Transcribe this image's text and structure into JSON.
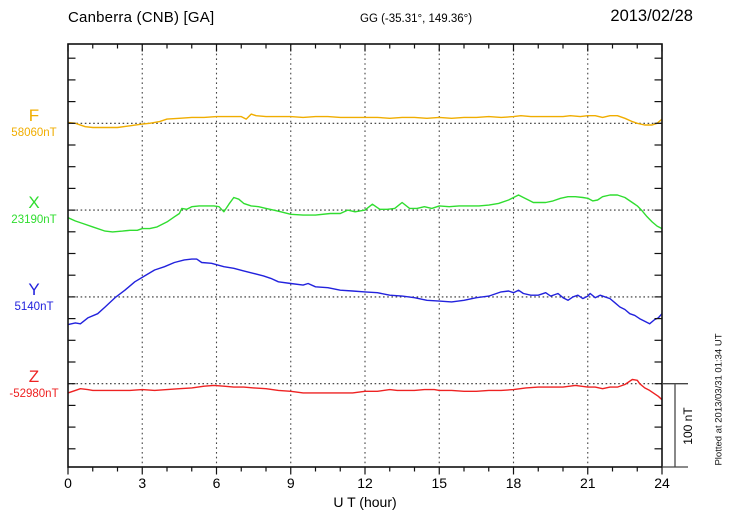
{
  "header": {
    "station_title": "Canberra (CNB)  [GA]",
    "coords": "GG (-35.31°, 149.36°)",
    "date": "2013/02/28"
  },
  "axes": {
    "x_label": "U T (hour)",
    "x_tick_labels": [
      "0",
      "3",
      "6",
      "9",
      "12",
      "15",
      "18",
      "21",
      "24"
    ],
    "x_range_hours": [
      0,
      24
    ]
  },
  "scale_bar": {
    "label": "100 nT",
    "span_nT": 100
  },
  "footer_note": "Plotted at 2013/03/31 01:34 UT",
  "channels": [
    {
      "id": "F",
      "label": "F",
      "value_label": "58060nT",
      "color": "#f0ad00"
    },
    {
      "id": "X",
      "label": "X",
      "value_label": "23190nT",
      "color": "#30dd30"
    },
    {
      "id": "Y",
      "label": "Y",
      "value_label": "5140nT",
      "color": "#2222dd"
    },
    {
      "id": "Z",
      "label": "Z",
      "value_label": "-52980nT",
      "color": "#ee2222"
    }
  ],
  "chart_data": {
    "type": "line",
    "title": "Canberra (CNB) magnetogram 2013/02/28",
    "xlabel": "U T (hour)",
    "x_range": [
      0,
      24
    ],
    "grid": "dotted vertical every 3 h, dotted horizontal baseline per channel",
    "vertical_scale": "100 nT per baseline interval",
    "series": [
      {
        "name": "F",
        "baseline_nT": 58060,
        "color": "#f0ad00",
        "points": [
          [
            0,
            58061
          ],
          [
            0.3,
            58060
          ],
          [
            0.7,
            58056
          ],
          [
            1,
            58055
          ],
          [
            1.5,
            58055
          ],
          [
            2,
            58055
          ],
          [
            2.5,
            58057
          ],
          [
            3,
            58059
          ],
          [
            3.3,
            58060
          ],
          [
            3.7,
            58062
          ],
          [
            4,
            58065
          ],
          [
            4.5,
            58066
          ],
          [
            5,
            58067
          ],
          [
            5.5,
            58067
          ],
          [
            6,
            58068
          ],
          [
            6.5,
            58068
          ],
          [
            7,
            58068
          ],
          [
            7.2,
            58065
          ],
          [
            7.4,
            58071
          ],
          [
            7.6,
            58069
          ],
          [
            8,
            58068
          ],
          [
            8.5,
            58068
          ],
          [
            9,
            58068
          ],
          [
            9.5,
            58067
          ],
          [
            10,
            58068
          ],
          [
            10.5,
            58068
          ],
          [
            11,
            58067
          ],
          [
            11.5,
            58067
          ],
          [
            12,
            58067
          ],
          [
            12.5,
            58067
          ],
          [
            13,
            58066
          ],
          [
            13.5,
            58067
          ],
          [
            14,
            58067
          ],
          [
            14.5,
            58066
          ],
          [
            15,
            58067
          ],
          [
            15.5,
            58066
          ],
          [
            16,
            58067
          ],
          [
            16.5,
            58067
          ],
          [
            17,
            58068
          ],
          [
            17.5,
            58067
          ],
          [
            18,
            58068
          ],
          [
            18.3,
            58069
          ],
          [
            18.7,
            58068
          ],
          [
            19,
            58068
          ],
          [
            19.5,
            58068
          ],
          [
            20,
            58068
          ],
          [
            20.3,
            58069
          ],
          [
            20.7,
            58068
          ],
          [
            21,
            58069
          ],
          [
            21.3,
            58069
          ],
          [
            21.6,
            58067
          ],
          [
            21.9,
            58069
          ],
          [
            22.2,
            58069
          ],
          [
            22.5,
            58066
          ],
          [
            22.8,
            58062
          ],
          [
            23,
            58060
          ],
          [
            23.3,
            58058
          ],
          [
            23.6,
            58058
          ],
          [
            23.8,
            58060
          ],
          [
            24,
            58065
          ]
        ]
      },
      {
        "name": "X",
        "baseline_nT": 23190,
        "color": "#30dd30",
        "points": [
          [
            0,
            23181
          ],
          [
            0.3,
            23177
          ],
          [
            0.6,
            23174
          ],
          [
            1,
            23170
          ],
          [
            1.5,
            23165
          ],
          [
            1.8,
            23164
          ],
          [
            2.2,
            23165
          ],
          [
            2.5,
            23166
          ],
          [
            2.8,
            23166
          ],
          [
            3,
            23168
          ],
          [
            3.3,
            23168
          ],
          [
            3.6,
            23170
          ],
          [
            4,
            23176
          ],
          [
            4.3,
            23182
          ],
          [
            4.5,
            23186
          ],
          [
            4.6,
            23192
          ],
          [
            4.8,
            23191
          ],
          [
            5,
            23194
          ],
          [
            5.3,
            23195
          ],
          [
            5.6,
            23195
          ],
          [
            5.9,
            23195
          ],
          [
            6.1,
            23194
          ],
          [
            6.3,
            23188
          ],
          [
            6.5,
            23197
          ],
          [
            6.7,
            23205
          ],
          [
            6.9,
            23203
          ],
          [
            7.1,
            23198
          ],
          [
            7.4,
            23195
          ],
          [
            7.7,
            23194
          ],
          [
            8,
            23192
          ],
          [
            8.3,
            23190
          ],
          [
            8.6,
            23188
          ],
          [
            9,
            23185
          ],
          [
            9.5,
            23184
          ],
          [
            10,
            23184
          ],
          [
            10.6,
            23186
          ],
          [
            11,
            23186
          ],
          [
            11.3,
            23190
          ],
          [
            11.6,
            23188
          ],
          [
            12,
            23190
          ],
          [
            12.3,
            23197
          ],
          [
            12.6,
            23191
          ],
          [
            12.9,
            23191
          ],
          [
            13.2,
            23192
          ],
          [
            13.5,
            23199
          ],
          [
            13.8,
            23192
          ],
          [
            14.1,
            23192
          ],
          [
            14.4,
            23194
          ],
          [
            14.7,
            23192
          ],
          [
            15,
            23195
          ],
          [
            15.4,
            23194
          ],
          [
            15.8,
            23195
          ],
          [
            16.2,
            23195
          ],
          [
            16.6,
            23195
          ],
          [
            17,
            23196
          ],
          [
            17.4,
            23198
          ],
          [
            17.8,
            23202
          ],
          [
            18.2,
            23208
          ],
          [
            18.4,
            23205
          ],
          [
            18.6,
            23202
          ],
          [
            18.8,
            23199
          ],
          [
            19,
            23199
          ],
          [
            19.3,
            23199
          ],
          [
            19.6,
            23201
          ],
          [
            19.9,
            23204
          ],
          [
            20.2,
            23206
          ],
          [
            20.5,
            23206
          ],
          [
            20.8,
            23205
          ],
          [
            21,
            23204
          ],
          [
            21.2,
            23201
          ],
          [
            21.4,
            23202
          ],
          [
            21.6,
            23206
          ],
          [
            21.9,
            23208
          ],
          [
            22.2,
            23208
          ],
          [
            22.5,
            23205
          ],
          [
            22.8,
            23199
          ],
          [
            23,
            23195
          ],
          [
            23.2,
            23189
          ],
          [
            23.4,
            23182
          ],
          [
            23.6,
            23176
          ],
          [
            23.8,
            23171
          ],
          [
            24,
            23168
          ]
        ]
      },
      {
        "name": "Y",
        "baseline_nT": 5140,
        "color": "#2222dd",
        "points": [
          [
            0,
            5107
          ],
          [
            0.3,
            5109
          ],
          [
            0.5,
            5108
          ],
          [
            0.8,
            5115
          ],
          [
            1.2,
            5120
          ],
          [
            1.5,
            5128
          ],
          [
            1.9,
            5139
          ],
          [
            2.3,
            5148
          ],
          [
            2.7,
            5158
          ],
          [
            3.1,
            5165
          ],
          [
            3.5,
            5172
          ],
          [
            3.9,
            5176
          ],
          [
            4.3,
            5181
          ],
          [
            4.7,
            5184
          ],
          [
            5,
            5185
          ],
          [
            5.2,
            5185
          ],
          [
            5.4,
            5181
          ],
          [
            5.8,
            5180
          ],
          [
            6.3,
            5176
          ],
          [
            6.7,
            5174
          ],
          [
            7.1,
            5171
          ],
          [
            7.5,
            5168
          ],
          [
            7.9,
            5165
          ],
          [
            8.2,
            5162
          ],
          [
            8.5,
            5158
          ],
          [
            9,
            5156
          ],
          [
            9.5,
            5154
          ],
          [
            9.7,
            5156
          ],
          [
            10,
            5152
          ],
          [
            10.5,
            5151
          ],
          [
            11,
            5148
          ],
          [
            11.5,
            5147
          ],
          [
            12,
            5146
          ],
          [
            12.5,
            5145
          ],
          [
            13,
            5142
          ],
          [
            13.5,
            5141
          ],
          [
            14,
            5139
          ],
          [
            14.5,
            5136
          ],
          [
            15,
            5135
          ],
          [
            15.5,
            5134
          ],
          [
            16,
            5136
          ],
          [
            16.5,
            5139
          ],
          [
            17,
            5141
          ],
          [
            17.5,
            5146
          ],
          [
            17.8,
            5147
          ],
          [
            18,
            5145
          ],
          [
            18.2,
            5148
          ],
          [
            18.4,
            5144
          ],
          [
            18.7,
            5142
          ],
          [
            19,
            5142
          ],
          [
            19.3,
            5145
          ],
          [
            19.5,
            5141
          ],
          [
            19.8,
            5144
          ],
          [
            20,
            5139
          ],
          [
            20.2,
            5136
          ],
          [
            20.4,
            5140
          ],
          [
            20.6,
            5142
          ],
          [
            20.8,
            5138
          ],
          [
            21,
            5141
          ],
          [
            21.1,
            5144
          ],
          [
            21.3,
            5139
          ],
          [
            21.5,
            5142
          ],
          [
            21.7,
            5140
          ],
          [
            21.9,
            5138
          ],
          [
            22.1,
            5133
          ],
          [
            22.3,
            5128
          ],
          [
            22.5,
            5125
          ],
          [
            22.7,
            5120
          ],
          [
            22.9,
            5118
          ],
          [
            23.1,
            5114
          ],
          [
            23.3,
            5111
          ],
          [
            23.5,
            5108
          ],
          [
            23.7,
            5113
          ],
          [
            23.85,
            5115
          ],
          [
            24,
            5120
          ]
        ]
      },
      {
        "name": "Z",
        "baseline_nT": -52980,
        "color": "#ee2222",
        "points": [
          [
            0,
            -52991
          ],
          [
            0.3,
            -52988
          ],
          [
            0.5,
            -52986
          ],
          [
            0.8,
            -52987
          ],
          [
            1,
            -52988
          ],
          [
            1.5,
            -52988
          ],
          [
            2,
            -52988
          ],
          [
            2.5,
            -52988
          ],
          [
            3,
            -52987
          ],
          [
            3.5,
            -52988
          ],
          [
            4,
            -52987
          ],
          [
            4.5,
            -52986
          ],
          [
            5,
            -52985
          ],
          [
            5.5,
            -52983
          ],
          [
            5.9,
            -52982
          ],
          [
            6.3,
            -52983
          ],
          [
            6.7,
            -52984
          ],
          [
            7.1,
            -52984
          ],
          [
            7.5,
            -52985
          ],
          [
            8,
            -52986
          ],
          [
            8.5,
            -52988
          ],
          [
            9,
            -52989
          ],
          [
            9.5,
            -52991
          ],
          [
            10,
            -52991
          ],
          [
            10.5,
            -52991
          ],
          [
            11,
            -52991
          ],
          [
            11.5,
            -52991
          ],
          [
            12,
            -52989
          ],
          [
            12.5,
            -52989
          ],
          [
            13,
            -52987
          ],
          [
            13.3,
            -52988
          ],
          [
            13.7,
            -52988
          ],
          [
            14,
            -52988
          ],
          [
            14.4,
            -52987
          ],
          [
            14.8,
            -52987
          ],
          [
            15,
            -52988
          ],
          [
            15.5,
            -52988
          ],
          [
            16,
            -52989
          ],
          [
            16.5,
            -52989
          ],
          [
            17,
            -52988
          ],
          [
            17.5,
            -52988
          ],
          [
            18,
            -52987
          ],
          [
            18.5,
            -52985
          ],
          [
            19,
            -52984
          ],
          [
            19.5,
            -52984
          ],
          [
            20,
            -52984
          ],
          [
            20.5,
            -52982
          ],
          [
            21,
            -52984
          ],
          [
            21.3,
            -52984
          ],
          [
            21.6,
            -52986
          ],
          [
            21.9,
            -52984
          ],
          [
            22.2,
            -52984
          ],
          [
            22.5,
            -52981
          ],
          [
            22.8,
            -52975
          ],
          [
            23,
            -52976
          ],
          [
            23.1,
            -52980
          ],
          [
            23.3,
            -52985
          ],
          [
            23.5,
            -52988
          ],
          [
            23.7,
            -52992
          ],
          [
            23.85,
            -52995
          ],
          [
            24,
            -52999
          ]
        ]
      }
    ]
  }
}
